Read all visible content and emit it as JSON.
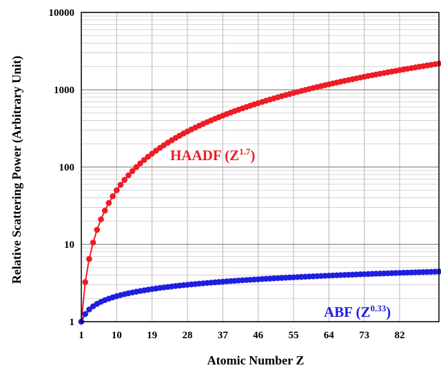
{
  "chart_data": {
    "type": "scatter",
    "xlabel": "Atomic Number Z",
    "ylabel": "Relative Scattering Power (Arbitrary Unit)",
    "xlim": [
      1,
      92
    ],
    "ylim": [
      1,
      10000
    ],
    "y_scale": "log",
    "x_ticks": [
      "1",
      "10",
      "19",
      "28",
      "37",
      "46",
      "55",
      "64",
      "73",
      "82"
    ],
    "x_tick_values": [
      1,
      10,
      19,
      28,
      37,
      46,
      55,
      64,
      73,
      82
    ],
    "y_ticks": [
      "1",
      "10",
      "100",
      "1000",
      "10000"
    ],
    "y_tick_values": [
      1,
      10,
      100,
      1000,
      10000
    ],
    "grid": true,
    "series": [
      {
        "label_text": "HAADF (Z",
        "label_sup": "1.7",
        "label_close": ")",
        "exponent": 1.7,
        "color": "#ee1c25",
        "z_min": 1,
        "z_max": 92
      },
      {
        "label_text": "ABF (Z",
        "label_sup": "0.33",
        "label_close": ")",
        "exponent": 0.33,
        "color": "#1f1fe0",
        "z_min": 1,
        "z_max": 92
      }
    ]
  }
}
